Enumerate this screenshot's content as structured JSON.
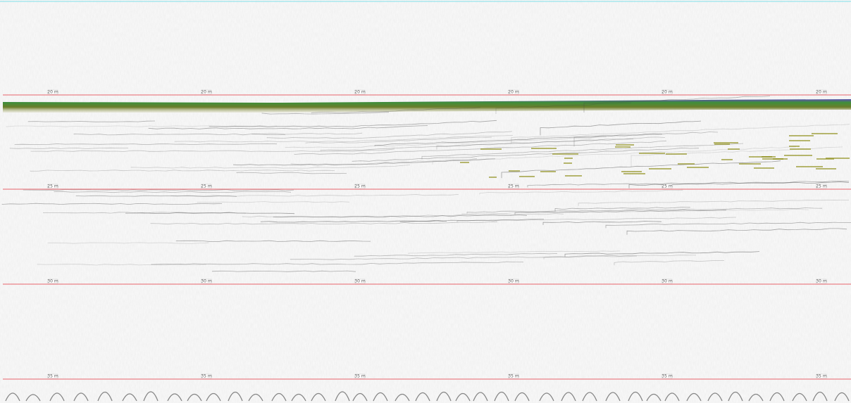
{
  "depth_lines": [
    {
      "label": "20 m"
    },
    {
      "label": "25 m"
    },
    {
      "label": "30 m"
    },
    {
      "label": "35 m"
    }
  ]
}
